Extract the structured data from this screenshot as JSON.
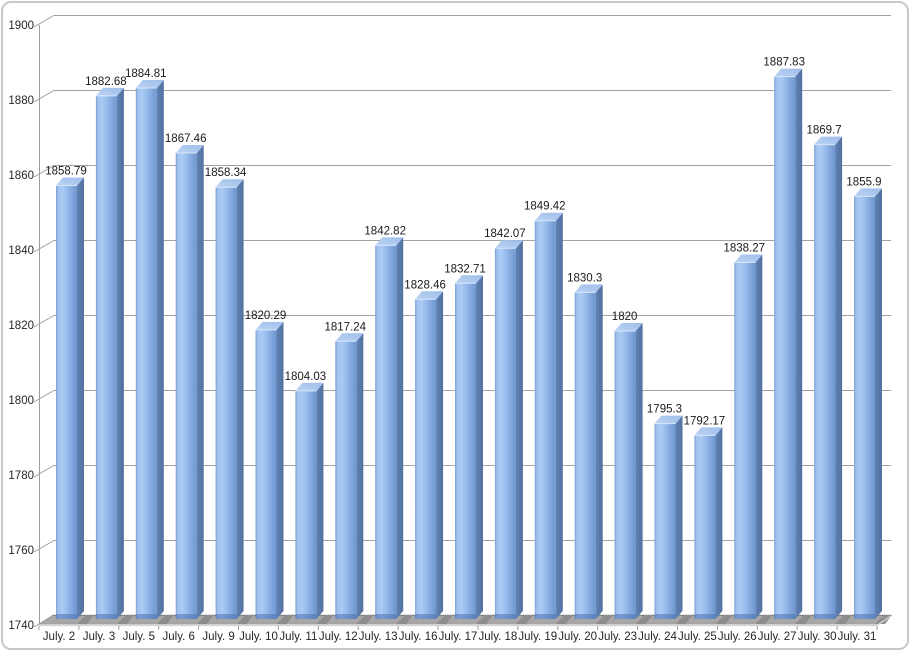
{
  "chart_data": {
    "type": "bar",
    "subtype": "3d-column",
    "title": "",
    "xlabel": "",
    "ylabel": "",
    "categories": [
      "July. 2",
      "July. 3",
      "July. 5",
      "July. 6",
      "July. 9",
      "July. 10",
      "July. 11",
      "July. 12",
      "July. 13",
      "July. 16",
      "July. 17",
      "July. 18",
      "July. 19",
      "July. 20",
      "July. 23",
      "July. 24",
      "July. 25",
      "July. 26",
      "July. 27",
      "July. 30",
      "July. 31"
    ],
    "values": [
      1858.79,
      1882.68,
      1884.81,
      1867.46,
      1858.34,
      1820.29,
      1804.03,
      1817.24,
      1842.82,
      1828.46,
      1832.71,
      1842.07,
      1849.42,
      1830.3,
      1820,
      1795.3,
      1792.17,
      1838.27,
      1887.83,
      1869.7,
      1855.9
    ],
    "value_labels": [
      "1858.79",
      "1882.68",
      "1884.81",
      "1867.46",
      "1858.34",
      "1820.29",
      "1804.03",
      "1817.24",
      "1842.82",
      "1828.46",
      "1832.71",
      "1842.07",
      "1849.42",
      "1830.3",
      "1820",
      "1795.3",
      "1792.17",
      "1838.27",
      "1887.83",
      "1869.7",
      "1855.9"
    ],
    "ylim": [
      1740,
      1900
    ],
    "yticks": [
      1740,
      1760,
      1780,
      1800,
      1820,
      1840,
      1860,
      1880,
      1900
    ],
    "grid": "horizontal",
    "legend": "none",
    "colors": {
      "background": "#FFFFFF",
      "frame_border": "#C9C8C8",
      "gridline": "#A3A3A3",
      "axis": "#9E9D9D",
      "axis_text": "#262626",
      "label_text": "#1A1A1A",
      "bar_front_edge": "#7BA0D2",
      "bar_front_light": "#ABCBF4",
      "bar_front_mid": "#92B7E9",
      "bar_front_dark": "#6D96CE",
      "bar_side_light": "#5F82B5",
      "bar_side_dark": "#52719F",
      "bar_top_light": "#BCD3F4",
      "bar_top_dark": "#9FBEEA",
      "bar_top_highlight": "#D9E6F9",
      "bar_base_shade": "#4C72AE",
      "floor": "#A8A6A6",
      "floor_back_edge": "#848282",
      "floor_front_highlight": "#D5D3D3",
      "floor_shadow": "#8E8C8C"
    }
  }
}
